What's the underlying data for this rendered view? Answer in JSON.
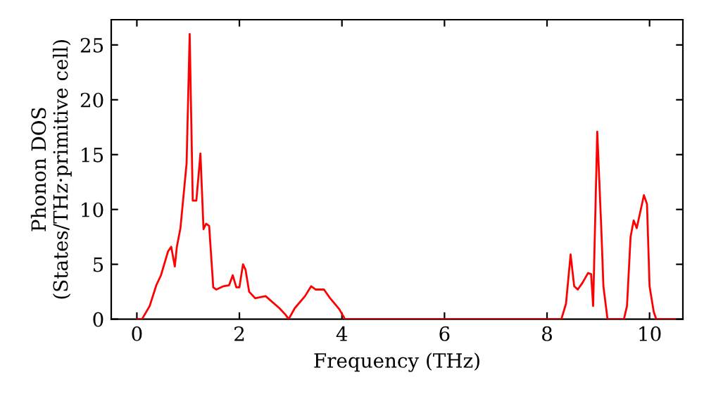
{
  "chart_data": {
    "type": "line",
    "xlabel": "Frequency (THz)",
    "ylabel": "Phonon DOS\n(States/THz·primitive cell)",
    "xlim": [
      -0.5,
      10.65
    ],
    "ylim": [
      0,
      27.3
    ],
    "xticks": [
      0,
      2,
      4,
      6,
      8,
      10
    ],
    "yticks": [
      0,
      5,
      10,
      15,
      20,
      25
    ],
    "grid": false,
    "marker": "none",
    "line_style": "solid",
    "series": [
      {
        "color": "#ff0000",
        "x": [
          0,
          0.1,
          0.25,
          0.38,
          0.47,
          0.61,
          0.67,
          0.74,
          0.78,
          0.85,
          0.97,
          1.03,
          1.09,
          1.16,
          1.24,
          1.3,
          1.35,
          1.41,
          1.49,
          1.55,
          1.69,
          1.8,
          1.87,
          1.94,
          2.0,
          2.07,
          2.12,
          2.19,
          2.31,
          2.51,
          2.78,
          2.9,
          2.96,
          3.08,
          3.28,
          3.4,
          3.49,
          3.65,
          3.77,
          3.95,
          4.06,
          8.28,
          8.37,
          8.46,
          8.53,
          8.6,
          8.69,
          8.8,
          8.86,
          8.9,
          8.98,
          9.06,
          9.1,
          9.18,
          9.5,
          9.56,
          9.63,
          9.69,
          9.75,
          9.89,
          9.95,
          10.0,
          10.08,
          10.13,
          10.5
        ],
        "values": [
          0,
          0,
          1.2,
          3.1,
          4,
          6.2,
          6.6,
          4.8,
          6.6,
          8.3,
          14.2,
          26,
          10.8,
          10.8,
          15.1,
          8.2,
          8.7,
          8.5,
          2.9,
          2.7,
          3,
          3.1,
          4,
          2.9,
          2.9,
          5,
          4.5,
          2.5,
          1.9,
          2.1,
          1,
          0.4,
          0,
          1,
          2.1,
          3,
          2.7,
          2.7,
          1.9,
          0.9,
          0,
          0,
          1.4,
          5.9,
          3,
          2.7,
          3.3,
          4.2,
          4.1,
          1.2,
          17.1,
          8.1,
          3,
          0,
          0,
          1.2,
          7.5,
          9,
          8.3,
          11.3,
          10.5,
          3,
          0.7,
          0,
          0
        ]
      }
    ]
  }
}
